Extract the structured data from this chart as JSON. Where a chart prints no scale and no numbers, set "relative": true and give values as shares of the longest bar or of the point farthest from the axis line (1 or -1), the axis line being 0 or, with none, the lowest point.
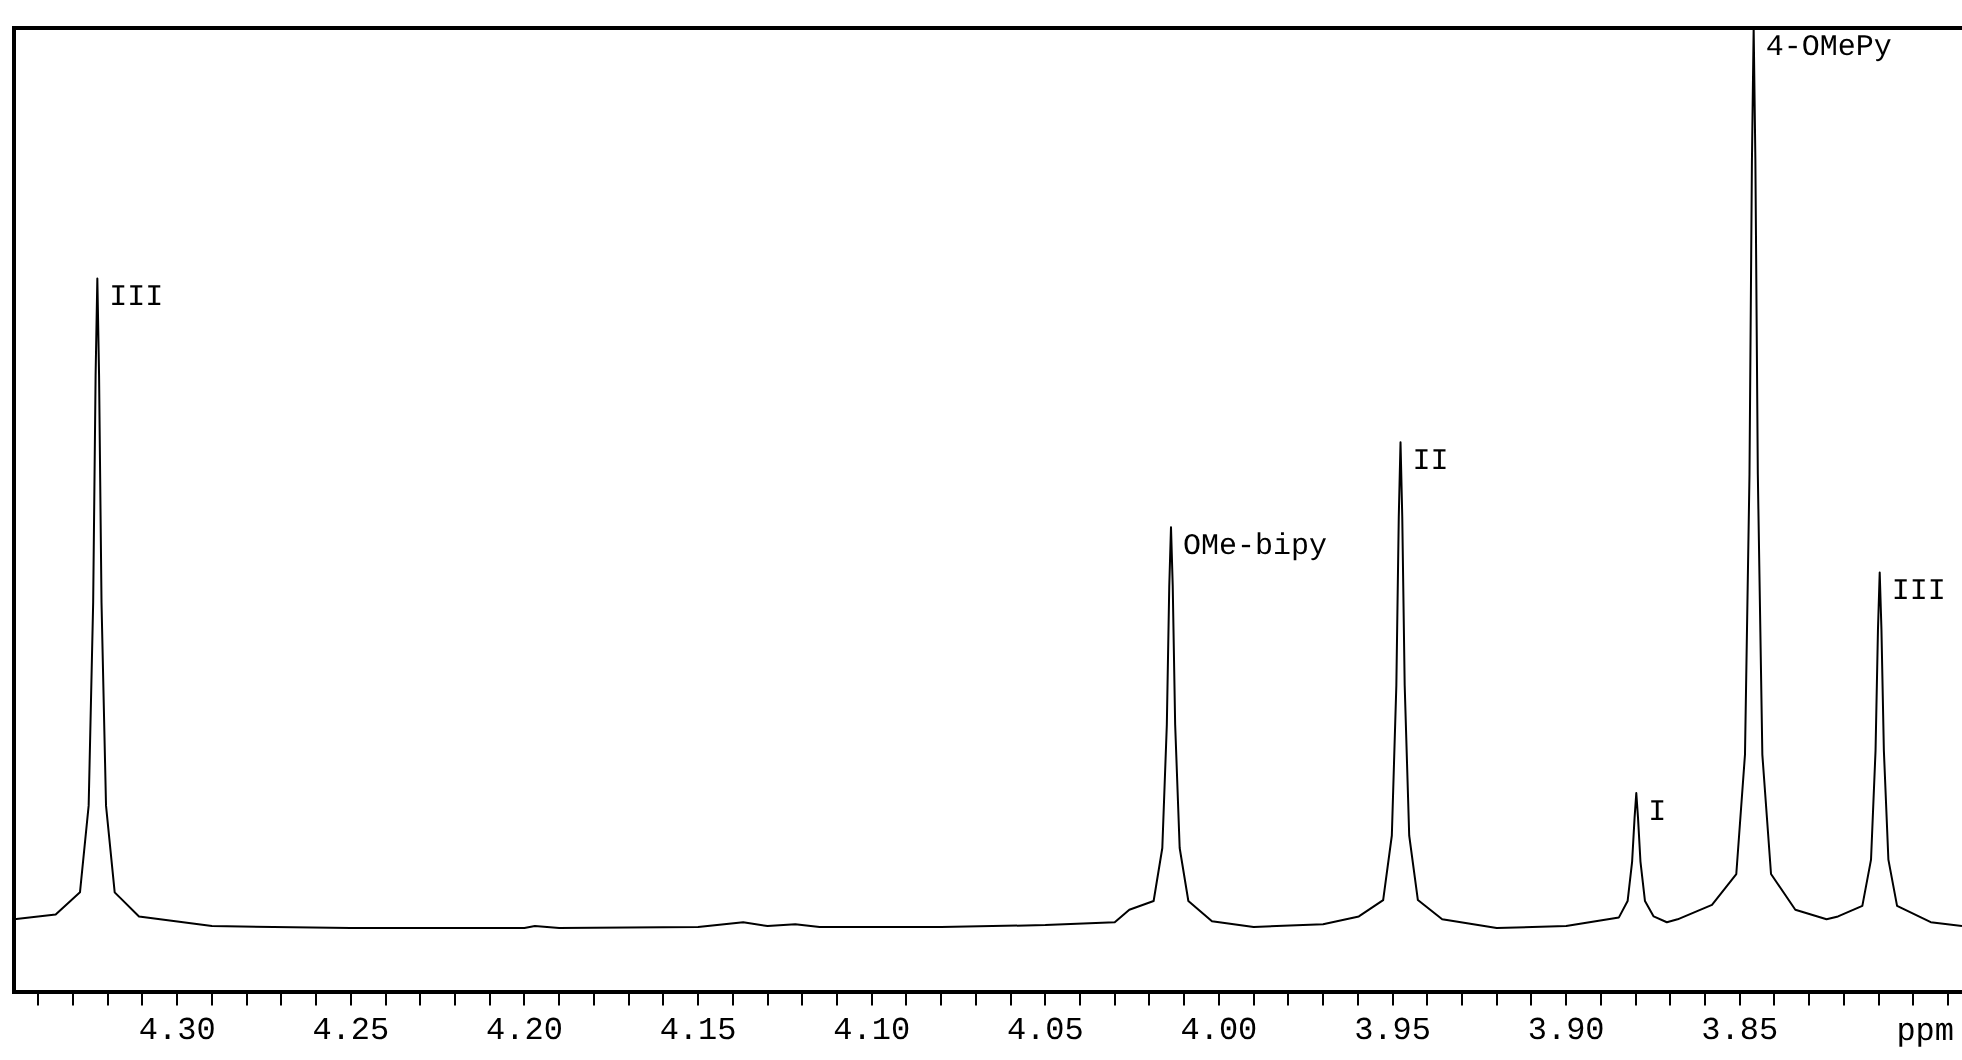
{
  "chart_data": {
    "type": "line",
    "relative": true,
    "xlabel": "ppm",
    "color": "#000000",
    "marker": "none",
    "line_style": "solid",
    "grid": false,
    "legend": false,
    "xlim": [
      4.347,
      3.786
    ],
    "xticks": [
      {
        "value": 4.34,
        "label": null
      },
      {
        "value": 4.33,
        "label": null
      },
      {
        "value": 4.32,
        "label": null
      },
      {
        "value": 4.31,
        "label": null
      },
      {
        "value": 4.3,
        "label": "4.30"
      },
      {
        "value": 4.29,
        "label": null
      },
      {
        "value": 4.28,
        "label": null
      },
      {
        "value": 4.27,
        "label": null
      },
      {
        "value": 4.26,
        "label": null
      },
      {
        "value": 4.25,
        "label": "4.25"
      },
      {
        "value": 4.24,
        "label": null
      },
      {
        "value": 4.23,
        "label": null
      },
      {
        "value": 4.22,
        "label": null
      },
      {
        "value": 4.21,
        "label": null
      },
      {
        "value": 4.2,
        "label": "4.20"
      },
      {
        "value": 4.19,
        "label": null
      },
      {
        "value": 4.18,
        "label": null
      },
      {
        "value": 4.17,
        "label": null
      },
      {
        "value": 4.16,
        "label": null
      },
      {
        "value": 4.15,
        "label": "4.15"
      },
      {
        "value": 4.14,
        "label": null
      },
      {
        "value": 4.13,
        "label": null
      },
      {
        "value": 4.12,
        "label": null
      },
      {
        "value": 4.11,
        "label": null
      },
      {
        "value": 4.1,
        "label": "4.10"
      },
      {
        "value": 4.09,
        "label": null
      },
      {
        "value": 4.08,
        "label": null
      },
      {
        "value": 4.07,
        "label": null
      },
      {
        "value": 4.06,
        "label": null
      },
      {
        "value": 4.05,
        "label": "4.05"
      },
      {
        "value": 4.04,
        "label": null
      },
      {
        "value": 4.03,
        "label": null
      },
      {
        "value": 4.02,
        "label": null
      },
      {
        "value": 4.01,
        "label": null
      },
      {
        "value": 4.0,
        "label": "4.00"
      },
      {
        "value": 3.99,
        "label": null
      },
      {
        "value": 3.98,
        "label": null
      },
      {
        "value": 3.97,
        "label": null
      },
      {
        "value": 3.96,
        "label": null
      },
      {
        "value": 3.95,
        "label": "3.95"
      },
      {
        "value": 3.94,
        "label": null
      },
      {
        "value": 3.93,
        "label": null
      },
      {
        "value": 3.92,
        "label": null
      },
      {
        "value": 3.91,
        "label": null
      },
      {
        "value": 3.9,
        "label": "3.90"
      },
      {
        "value": 3.89,
        "label": null
      },
      {
        "value": 3.88,
        "label": null
      },
      {
        "value": 3.87,
        "label": null
      },
      {
        "value": 3.86,
        "label": null
      },
      {
        "value": 3.85,
        "label": "3.85"
      },
      {
        "value": 3.84,
        "label": null
      },
      {
        "value": 3.83,
        "label": null
      },
      {
        "value": 3.82,
        "label": null
      },
      {
        "value": 3.81,
        "label": null
      },
      {
        "value": 3.8,
        "label": null
      },
      {
        "value": 3.79,
        "label": null
      }
    ],
    "x": [
      4.347,
      4.335,
      4.328,
      4.3255,
      4.3242,
      4.3235,
      4.323,
      4.3225,
      4.3218,
      4.3205,
      4.318,
      4.311,
      4.29,
      4.25,
      4.2,
      4.197,
      4.19,
      4.15,
      4.137,
      4.13,
      4.122,
      4.115,
      4.08,
      4.05,
      4.03,
      4.0258,
      4.0188,
      4.0163,
      4.015,
      4.0143,
      4.0138,
      4.0133,
      4.0126,
      4.0113,
      4.0088,
      4.002,
      3.99,
      3.97,
      3.9597,
      3.9527,
      3.9502,
      3.9489,
      3.9482,
      3.9477,
      3.9472,
      3.9465,
      3.9452,
      3.9427,
      3.9357,
      3.92,
      3.9,
      3.8848,
      3.8823,
      3.881,
      3.8803,
      3.8798,
      3.8793,
      3.8786,
      3.8773,
      3.8748,
      3.871,
      3.8679,
      3.858,
      3.851,
      3.8485,
      3.8472,
      3.8465,
      3.846,
      3.8455,
      3.8448,
      3.8435,
      3.841,
      3.834,
      3.825,
      3.8217,
      3.8147,
      3.8122,
      3.8109,
      3.8102,
      3.8097,
      3.8092,
      3.8085,
      3.8072,
      3.8047,
      3.795,
      3.786
    ],
    "values": [
      0.075,
      0.08,
      0.103,
      0.193,
      0.404,
      0.639,
      0.74,
      0.639,
      0.404,
      0.193,
      0.103,
      0.078,
      0.068,
      0.066,
      0.066,
      0.068,
      0.066,
      0.067,
      0.072,
      0.068,
      0.07,
      0.067,
      0.067,
      0.069,
      0.072,
      0.085,
      0.094,
      0.149,
      0.277,
      0.421,
      0.482,
      0.421,
      0.277,
      0.149,
      0.094,
      0.073,
      0.067,
      0.07,
      0.078,
      0.095,
      0.162,
      0.318,
      0.493,
      0.57,
      0.493,
      0.318,
      0.162,
      0.095,
      0.075,
      0.066,
      0.068,
      0.077,
      0.094,
      0.135,
      0.18,
      0.206,
      0.18,
      0.135,
      0.094,
      0.078,
      0.072,
      0.075,
      0.09,
      0.122,
      0.246,
      0.537,
      0.862,
      1.0,
      0.862,
      0.537,
      0.246,
      0.122,
      0.085,
      0.075,
      0.078,
      0.089,
      0.137,
      0.25,
      0.376,
      0.435,
      0.376,
      0.25,
      0.137,
      0.089,
      0.072,
      0.068
    ],
    "annotations": [
      {
        "text": "III",
        "x": 4.323,
        "y": 0.74
      },
      {
        "text": "OMe-bipy",
        "x": 4.0138,
        "y": 0.482
      },
      {
        "text": "II",
        "x": 3.9477,
        "y": 0.57
      },
      {
        "text": "I",
        "x": 3.8798,
        "y": 0.206
      },
      {
        "text": "4-OMePy",
        "x": 3.846,
        "y": 1.0
      },
      {
        "text": "III",
        "x": 3.8097,
        "y": 0.435
      }
    ]
  }
}
